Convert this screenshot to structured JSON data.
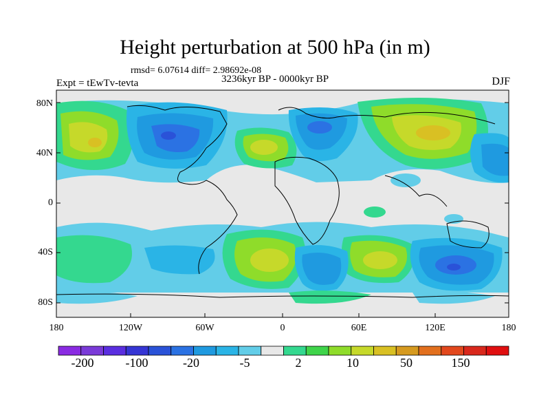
{
  "title": "Height perturbation at 500 hPa (in m)",
  "stats": "rmsd= 6.07614 diff= 2.98692e-08",
  "period": "3236kyr BP - 0000kyr BP",
  "experiment": "Expt = tEwTv-tevta",
  "season": "DJF",
  "map": {
    "lat_ticks": [
      "80N",
      "40N",
      "0",
      "40S",
      "80S"
    ],
    "lon_ticks": [
      "180",
      "120W",
      "60W",
      "0",
      "60E",
      "120E",
      "180"
    ]
  },
  "colorbar": {
    "labels": [
      "-200",
      "-100",
      "-20",
      "-5",
      "2",
      "10",
      "50",
      "150"
    ],
    "colors": [
      "#8a2be2",
      "#7a3ad8",
      "#5a2ee0",
      "#3535d4",
      "#2a52d8",
      "#2b72e3",
      "#1f9ae0",
      "#2ab4e6",
      "#62cde8",
      "#e8e8e8",
      "#34d88f",
      "#3fd44a",
      "#8fdc2a",
      "#c6d92a",
      "#d9c023",
      "#d69a1f",
      "#e2701e",
      "#e2481d",
      "#d9281c",
      "#e00f10"
    ]
  }
}
